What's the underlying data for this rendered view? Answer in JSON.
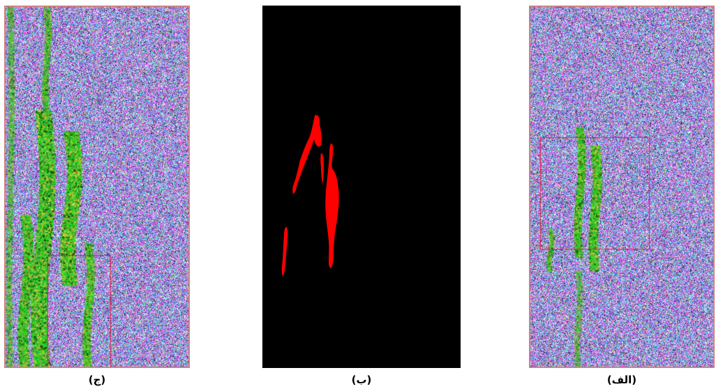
{
  "captions": {
    "left": "(ج)",
    "middle": "(ب)",
    "right": "(الف)"
  },
  "colors": {
    "mask_red": "#ff0000",
    "background_black": "#000000",
    "box_red": "#e0204a",
    "frame_border": "#d08080",
    "noise_magenta": "#d050e0",
    "noise_cyan": "#40d0d0",
    "noise_blue": "#5060d0",
    "vegetation_green": "#30c030",
    "vegetation_yellow": "#c8c040"
  },
  "panels": [
    {
      "name": "zoomed-noisy-image",
      "description_icon": "noise-texture-icon"
    },
    {
      "name": "segmentation-mask",
      "description_icon": "red-mask-icon"
    },
    {
      "name": "full-noisy-image",
      "description_icon": "noise-texture-icon"
    }
  ]
}
